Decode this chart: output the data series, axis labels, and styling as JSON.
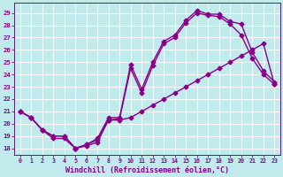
{
  "xlabel": "Windchill (Refroidissement éolien,°C)",
  "background_color": "#c0eaec",
  "line_color": "#880088",
  "grid_color": "#ffffff",
  "xlim": [
    -0.5,
    23.5
  ],
  "ylim": [
    17.5,
    29.8
  ],
  "xticks": [
    0,
    1,
    2,
    3,
    4,
    5,
    6,
    7,
    8,
    9,
    10,
    11,
    12,
    13,
    14,
    15,
    16,
    17,
    18,
    19,
    20,
    21,
    22,
    23
  ],
  "yticks": [
    18,
    19,
    20,
    21,
    22,
    23,
    24,
    25,
    26,
    27,
    28,
    29
  ],
  "curve1_x": [
    0,
    1,
    2,
    3,
    4,
    5,
    6,
    7,
    8,
    9,
    10,
    11,
    12,
    13,
    14,
    15,
    16,
    17,
    18,
    19,
    20,
    21,
    22,
    23
  ],
  "curve1_y": [
    21,
    20.5,
    19.5,
    18.8,
    18.8,
    18.0,
    18.2,
    18.5,
    20.3,
    20.4,
    24.5,
    22.5,
    24.7,
    26.5,
    27.0,
    28.2,
    29.0,
    28.8,
    28.7,
    28.1,
    27.2,
    25.3,
    24.0,
    23.2
  ],
  "curve2_x": [
    0,
    1,
    2,
    3,
    4,
    5,
    6,
    7,
    8,
    9,
    10,
    11,
    12,
    13,
    14,
    15,
    16,
    17,
    18,
    19,
    20,
    21,
    22,
    23
  ],
  "curve2_y": [
    21,
    20.5,
    19.5,
    19.0,
    19.0,
    18.0,
    18.3,
    18.8,
    20.5,
    20.5,
    24.8,
    22.8,
    25.0,
    26.7,
    27.2,
    28.4,
    29.2,
    28.9,
    28.9,
    28.3,
    28.1,
    25.8,
    24.3,
    23.4
  ],
  "curve3_x": [
    0,
    1,
    2,
    3,
    4,
    5,
    6,
    7,
    8,
    9,
    10,
    11,
    12,
    13,
    14,
    15,
    16,
    17,
    18,
    19,
    20,
    21,
    22,
    23
  ],
  "curve3_y": [
    21,
    20.5,
    19.5,
    19.0,
    19.0,
    18.0,
    18.3,
    18.7,
    20.3,
    20.3,
    20.5,
    21.0,
    21.5,
    22.0,
    22.5,
    23.0,
    23.5,
    24.0,
    24.5,
    25.0,
    25.5,
    26.0,
    26.5,
    23.2
  ],
  "marker": "D",
  "markersize": 2.5,
  "linewidth": 1.0
}
